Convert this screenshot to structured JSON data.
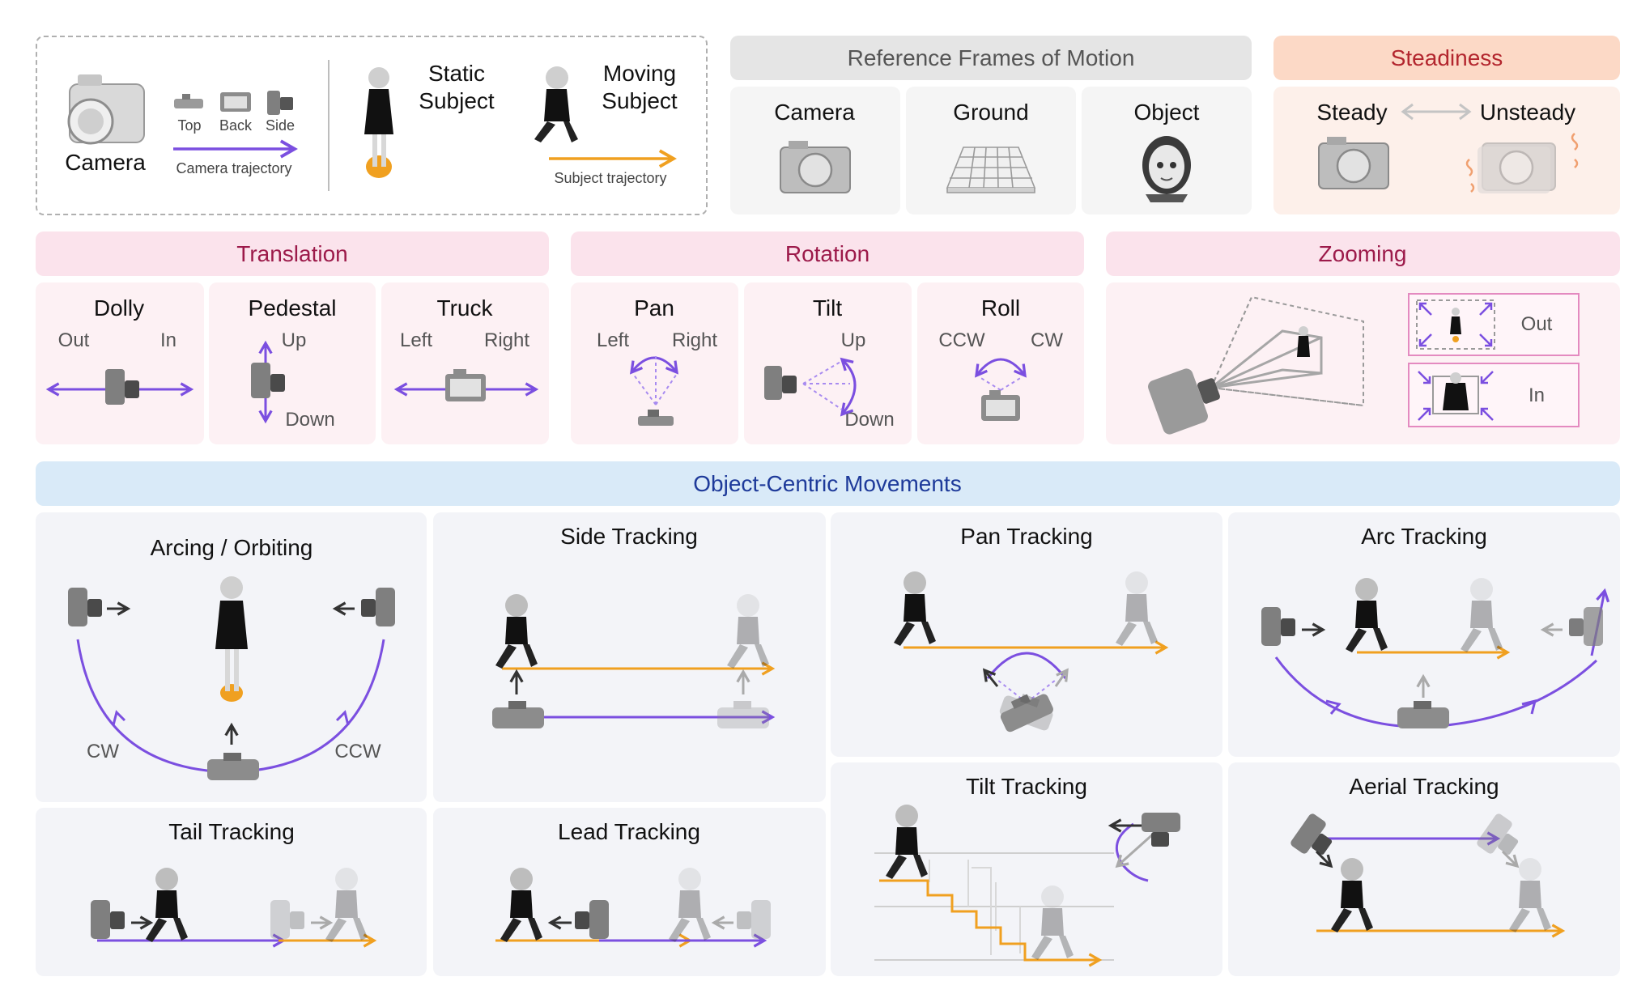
{
  "legend": {
    "camera": "Camera",
    "views": [
      "Top",
      "Back",
      "Side"
    ],
    "camera_trajectory": "Camera trajectory",
    "static_subject": [
      "Static",
      "Subject"
    ],
    "moving_subject": [
      "Moving",
      "Subject"
    ],
    "subject_trajectory": "Subject trajectory"
  },
  "reference_frames": {
    "title": "Reference Frames of Motion",
    "items": [
      "Camera",
      "Ground",
      "Object"
    ]
  },
  "steadiness": {
    "title": "Steadiness",
    "steady": "Steady",
    "unsteady": "Unsteady"
  },
  "translation": {
    "title": "Translation",
    "dolly": {
      "name": "Dolly",
      "a": "Out",
      "b": "In"
    },
    "pedestal": {
      "name": "Pedestal",
      "a": "Up",
      "b": "Down"
    },
    "truck": {
      "name": "Truck",
      "a": "Left",
      "b": "Right"
    }
  },
  "rotation": {
    "title": "Rotation",
    "pan": {
      "name": "Pan",
      "a": "Left",
      "b": "Right"
    },
    "tilt": {
      "name": "Tilt",
      "a": "Up",
      "b": "Down"
    },
    "roll": {
      "name": "Roll",
      "a": "CCW",
      "b": "CW"
    }
  },
  "zooming": {
    "title": "Zooming",
    "out": "Out",
    "in": "In"
  },
  "object_centric": {
    "title": "Object-Centric Movements",
    "arcing": {
      "name": "Arcing / Orbiting",
      "cw": "CW",
      "ccw": "CCW"
    },
    "side_tracking": "Side Tracking",
    "pan_tracking": "Pan Tracking",
    "arc_tracking": "Arc Tracking",
    "tail_tracking": "Tail Tracking",
    "lead_tracking": "Lead Tracking",
    "tilt_tracking": "Tilt Tracking",
    "aerial_tracking": "Aerial Tracking"
  },
  "colors": {
    "purple": "#7b4fe0",
    "orange": "#f0a020",
    "maroon": "#9c1a4a",
    "navy": "#1e3a9a",
    "steady_title": "#b3262e"
  }
}
